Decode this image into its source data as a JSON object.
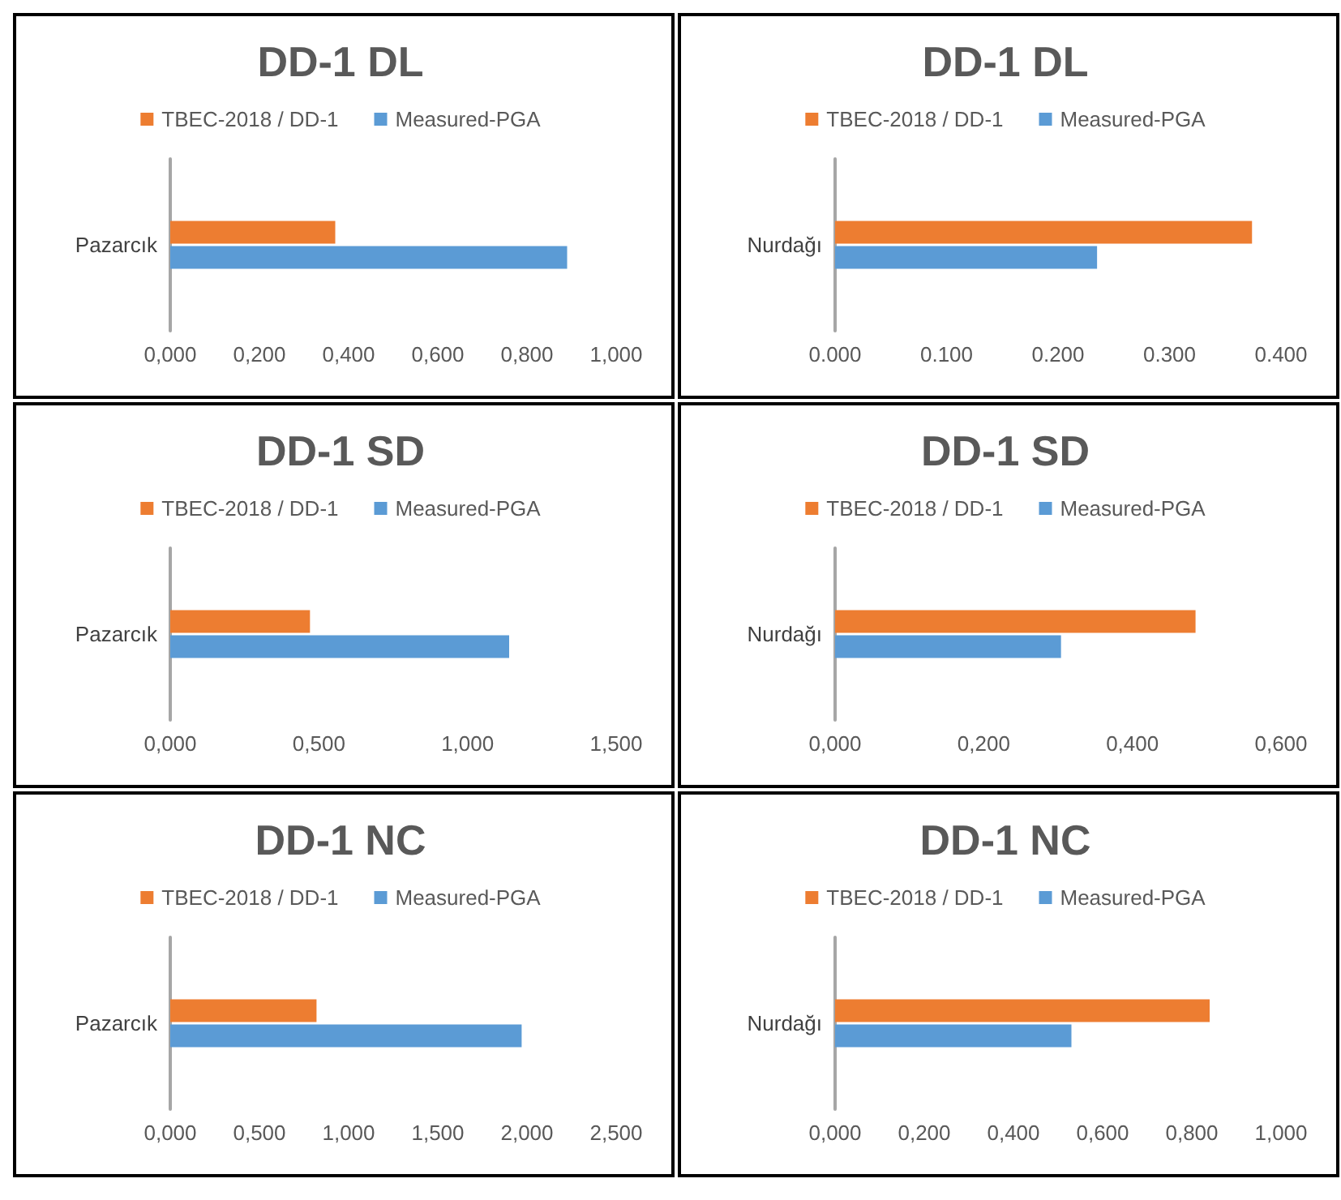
{
  "chart_data": [
    {
      "type": "bar",
      "orientation": "horizontal",
      "title": "DD-1 DL",
      "categories": [
        "Pazarcık"
      ],
      "legend": "top",
      "grid": false,
      "series": [
        {
          "name": "TBEC-2018 / DD-1",
          "color": "#ed7d31",
          "values": [
            0.37
          ]
        },
        {
          "name": "Measured-PGA",
          "color": "#5b9bd5",
          "values": [
            0.89
          ]
        }
      ],
      "xlim": [
        0,
        1
      ],
      "xticks": [
        {
          "value": 0,
          "label": "0,000"
        },
        {
          "value": 0.2,
          "label": "0,200"
        },
        {
          "value": 0.4,
          "label": "0,400"
        },
        {
          "value": 0.6,
          "label": "0,600"
        },
        {
          "value": 0.8,
          "label": "0,800"
        },
        {
          "value": 1,
          "label": "1,000"
        }
      ]
    },
    {
      "type": "bar",
      "orientation": "horizontal",
      "title": "DD-1 DL",
      "categories": [
        "Nurdağı"
      ],
      "legend": "top",
      "grid": false,
      "series": [
        {
          "name": "TBEC-2018 / DD-1",
          "color": "#ed7d31",
          "values": [
            0.374
          ]
        },
        {
          "name": "Measured-PGA",
          "color": "#5b9bd5",
          "values": [
            0.235
          ]
        }
      ],
      "xlim": [
        0,
        0.4
      ],
      "xticks": [
        {
          "value": 0,
          "label": "0.000"
        },
        {
          "value": 0.1,
          "label": "0.100"
        },
        {
          "value": 0.2,
          "label": "0.200"
        },
        {
          "value": 0.3,
          "label": "0.300"
        },
        {
          "value": 0.4,
          "label": "0.400"
        }
      ]
    },
    {
      "type": "bar",
      "orientation": "horizontal",
      "title": "DD-1 SD",
      "categories": [
        "Pazarcık"
      ],
      "legend": "top",
      "grid": false,
      "series": [
        {
          "name": "TBEC-2018 / DD-1",
          "color": "#ed7d31",
          "values": [
            0.47
          ]
        },
        {
          "name": "Measured-PGA",
          "color": "#5b9bd5",
          "values": [
            1.14
          ]
        }
      ],
      "xlim": [
        0,
        1.5
      ],
      "xticks": [
        {
          "value": 0,
          "label": "0,000"
        },
        {
          "value": 0.5,
          "label": "0,500"
        },
        {
          "value": 1,
          "label": "1,000"
        },
        {
          "value": 1.5,
          "label": "1,500"
        }
      ]
    },
    {
      "type": "bar",
      "orientation": "horizontal",
      "title": "DD-1 SD",
      "categories": [
        "Nurdağı"
      ],
      "legend": "top",
      "grid": false,
      "series": [
        {
          "name": "TBEC-2018 / DD-1",
          "color": "#ed7d31",
          "values": [
            0.485
          ]
        },
        {
          "name": "Measured-PGA",
          "color": "#5b9bd5",
          "values": [
            0.304
          ]
        }
      ],
      "xlim": [
        0,
        0.6
      ],
      "xticks": [
        {
          "value": 0,
          "label": "0,000"
        },
        {
          "value": 0.2,
          "label": "0,200"
        },
        {
          "value": 0.4,
          "label": "0,400"
        },
        {
          "value": 0.6,
          "label": "0,600"
        }
      ]
    },
    {
      "type": "bar",
      "orientation": "horizontal",
      "title": "DD-1 NC",
      "categories": [
        "Pazarcık"
      ],
      "legend": "top",
      "grid": false,
      "series": [
        {
          "name": "TBEC-2018 / DD-1",
          "color": "#ed7d31",
          "values": [
            0.82
          ]
        },
        {
          "name": "Measured-PGA",
          "color": "#5b9bd5",
          "values": [
            1.97
          ]
        }
      ],
      "xlim": [
        0,
        2.5
      ],
      "xticks": [
        {
          "value": 0,
          "label": "0,000"
        },
        {
          "value": 0.5,
          "label": "0,500"
        },
        {
          "value": 1,
          "label": "1,000"
        },
        {
          "value": 1.5,
          "label": "1,500"
        },
        {
          "value": 2,
          "label": "2,000"
        },
        {
          "value": 2.5,
          "label": "2,500"
        }
      ]
    },
    {
      "type": "bar",
      "orientation": "horizontal",
      "title": "DD-1 NC",
      "categories": [
        "Nurdağı"
      ],
      "legend": "top",
      "grid": false,
      "series": [
        {
          "name": "TBEC-2018 / DD-1",
          "color": "#ed7d31",
          "values": [
            0.84
          ]
        },
        {
          "name": "Measured-PGA",
          "color": "#5b9bd5",
          "values": [
            0.53
          ]
        }
      ],
      "xlim": [
        0,
        1
      ],
      "xticks": [
        {
          "value": 0,
          "label": "0,000"
        },
        {
          "value": 0.2,
          "label": "0,200"
        },
        {
          "value": 0.4,
          "label": "0,400"
        },
        {
          "value": 0.6,
          "label": "0,600"
        },
        {
          "value": 0.8,
          "label": "0,800"
        },
        {
          "value": 1,
          "label": "1,000"
        }
      ]
    }
  ]
}
